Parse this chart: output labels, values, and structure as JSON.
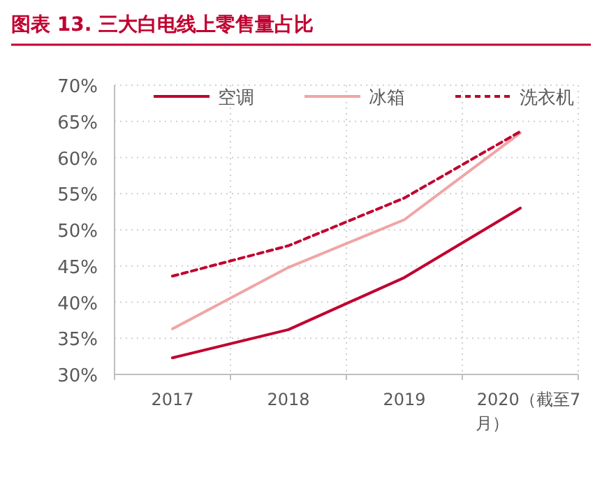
{
  "chart_data": {
    "type": "line",
    "title": "图表 13. 三大白电线上零售量占比",
    "categories": [
      "2017",
      "2018",
      "2019",
      "2020（截至7月）"
    ],
    "series": [
      {
        "name": "空调",
        "color": "#c0002f",
        "values": [
          32.3,
          36.2,
          43.4,
          53.0
        ]
      },
      {
        "name": "冰箱",
        "color": "#f0a5a5",
        "values": [
          36.3,
          44.8,
          51.4,
          63.4
        ]
      },
      {
        "name": "洗衣机",
        "color": "#c0002f",
        "values": [
          43.6,
          47.8,
          54.4,
          63.6
        ],
        "line_style": "dashed"
      }
    ],
    "ylim": [
      30,
      70
    ],
    "yticks": [
      {
        "value": 30,
        "label": "30%"
      },
      {
        "value": 35,
        "label": "35%"
      },
      {
        "value": 40,
        "label": "40%"
      },
      {
        "value": 45,
        "label": "45%"
      },
      {
        "value": 50,
        "label": "50%"
      },
      {
        "value": 55,
        "label": "55%"
      },
      {
        "value": 60,
        "label": "60%"
      },
      {
        "value": 65,
        "label": "65%"
      },
      {
        "value": 70,
        "label": "70%"
      }
    ],
    "grid": true,
    "legend": "top"
  }
}
